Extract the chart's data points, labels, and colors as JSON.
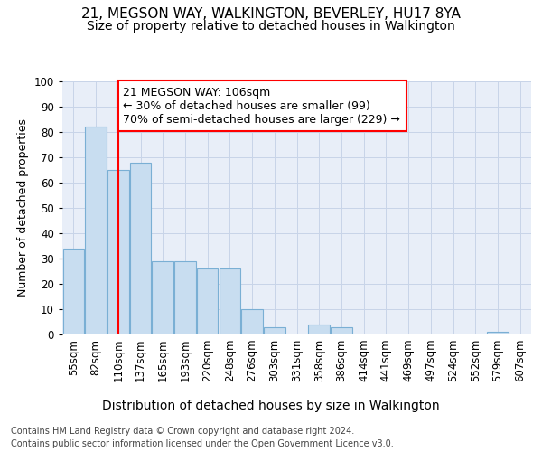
{
  "title1": "21, MEGSON WAY, WALKINGTON, BEVERLEY, HU17 8YA",
  "title2": "Size of property relative to detached houses in Walkington",
  "xlabel": "Distribution of detached houses by size in Walkington",
  "ylabel": "Number of detached properties",
  "footer1": "Contains HM Land Registry data © Crown copyright and database right 2024.",
  "footer2": "Contains public sector information licensed under the Open Government Licence v3.0.",
  "bin_labels": [
    "55sqm",
    "82sqm",
    "110sqm",
    "137sqm",
    "165sqm",
    "193sqm",
    "220sqm",
    "248sqm",
    "276sqm",
    "303sqm",
    "331sqm",
    "358sqm",
    "386sqm",
    "414sqm",
    "441sqm",
    "469sqm",
    "497sqm",
    "524sqm",
    "552sqm",
    "579sqm",
    "607sqm"
  ],
  "bar_values": [
    34,
    82,
    65,
    68,
    29,
    29,
    26,
    26,
    10,
    3,
    0,
    4,
    3,
    0,
    0,
    0,
    0,
    0,
    0,
    1,
    0
  ],
  "bar_color": "#c8ddf0",
  "bar_edge_color": "#7aafd4",
  "annotation_line1": "21 MEGSON WAY: 106sqm",
  "annotation_line2": "← 30% of detached houses are smaller (99)",
  "annotation_line3": "70% of semi-detached houses are larger (229) →",
  "red_line_x": 2.0,
  "ylim": [
    0,
    100
  ],
  "yticks": [
    0,
    10,
    20,
    30,
    40,
    50,
    60,
    70,
    80,
    90,
    100
  ],
  "bg_color": "#ffffff",
  "plot_bg_color": "#e8eef8",
  "grid_color": "#c8d4e8",
  "title1_fontsize": 11,
  "title2_fontsize": 10,
  "ylabel_fontsize": 9,
  "xlabel_fontsize": 10,
  "tick_fontsize": 8.5,
  "annotation_fontsize": 9,
  "footer_fontsize": 7
}
